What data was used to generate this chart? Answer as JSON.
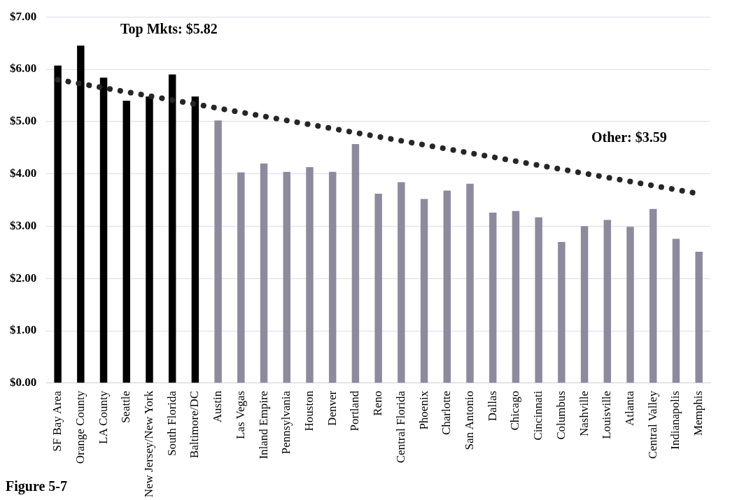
{
  "chart_data": {
    "type": "bar",
    "categories": [
      "SF Bay Area",
      "Orange County",
      "LA County",
      "Seattle",
      "New Jersey/New York",
      "South Florida",
      "Baltimore/DC",
      "Austin",
      "Las Vegas",
      "Inland Empire",
      "Pennsylvania",
      "Houston",
      "Denver",
      "Portland",
      "Reno",
      "Central Florida",
      "Phoenix",
      "Charlotte",
      "San Antonio",
      "Dallas",
      "Chicago",
      "Cincinnati",
      "Columbus",
      "Nashville",
      "Louisville",
      "Atlanta",
      "Central Valley",
      "Indianapolis",
      "Memphis"
    ],
    "series": [
      {
        "values": [
          6.07,
          6.45,
          5.84,
          5.4,
          5.48,
          5.9,
          5.48,
          5.02,
          4.03,
          4.2,
          4.04,
          4.13,
          4.04,
          4.57,
          3.62,
          3.84,
          3.52,
          3.68,
          3.81,
          3.26,
          3.29,
          3.17,
          2.7,
          3.0,
          3.12,
          2.99,
          3.33,
          2.76,
          2.51
        ],
        "colors": [
          "#000000",
          "#000000",
          "#000000",
          "#000000",
          "#000000",
          "#000000",
          "#000000",
          "#8e8a9e",
          "#8e8a9e",
          "#8e8a9e",
          "#8e8a9e",
          "#8e8a9e",
          "#8e8a9e",
          "#8e8a9e",
          "#8e8a9e",
          "#8e8a9e",
          "#8e8a9e",
          "#8e8a9e",
          "#8e8a9e",
          "#8e8a9e",
          "#8e8a9e",
          "#8e8a9e",
          "#8e8a9e",
          "#8e8a9e",
          "#8e8a9e",
          "#8e8a9e",
          "#8e8a9e",
          "#8e8a9e",
          "#8e8a9e"
        ]
      },
      {
        "type": "line",
        "color": "#262626",
        "line_style": "dotted",
        "marker": "none",
        "x": [
          "SF Bay Area",
          "Memphis"
        ],
        "values": [
          5.8,
          3.62
        ]
      }
    ],
    "ylim": [
      0,
      7
    ],
    "yticks": [
      {
        "value": 0,
        "label": "$0.00"
      },
      {
        "value": 1,
        "label": "$1.00"
      },
      {
        "value": 2,
        "label": "$2.00"
      },
      {
        "value": 3,
        "label": "$3.00"
      },
      {
        "value": 4,
        "label": "$4.00"
      },
      {
        "value": 5,
        "label": "$5.00"
      },
      {
        "value": 6,
        "label": "$6.00"
      },
      {
        "value": 7,
        "label": "$7.00"
      }
    ],
    "grid": "y",
    "legend": false,
    "annotations": [
      "Top Mkts: $5.82",
      "Other: $3.59",
      "Figure 5-7"
    ]
  }
}
